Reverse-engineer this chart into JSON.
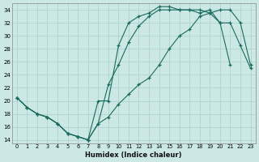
{
  "xlabel": "Humidex (Indice chaleur)",
  "bg_color": "#cce8e4",
  "grid_color": "#aacfcc",
  "line_color": "#1a6b5e",
  "xlim": [
    -0.5,
    23.5
  ],
  "ylim": [
    13.5,
    35
  ],
  "yticks": [
    14,
    16,
    18,
    20,
    22,
    24,
    26,
    28,
    30,
    32,
    34
  ],
  "xticks": [
    0,
    1,
    2,
    3,
    4,
    5,
    6,
    7,
    8,
    9,
    10,
    11,
    12,
    13,
    14,
    15,
    16,
    17,
    18,
    19,
    20,
    21,
    22,
    23
  ],
  "line1_x": [
    0,
    1,
    2,
    3,
    4,
    5,
    6,
    7,
    8,
    9,
    10,
    11,
    12,
    13,
    14,
    15,
    16,
    17,
    18,
    19,
    20,
    21,
    22,
    23
  ],
  "line1_y": [
    20.5,
    19.0,
    18.0,
    17.5,
    16.5,
    15.0,
    14.5,
    14.0,
    20.0,
    20.0,
    28.5,
    32.0,
    33.0,
    33.5,
    34.5,
    34.5,
    34.0,
    34.0,
    34.0,
    33.5,
    32.0,
    32.0,
    28.5,
    25.0
  ],
  "line2_x": [
    0,
    1,
    2,
    3,
    4,
    5,
    6,
    7,
    8,
    9,
    10,
    11,
    12,
    13,
    14,
    15,
    16,
    17,
    18,
    19,
    20,
    21
  ],
  "line2_y": [
    20.5,
    19.0,
    18.0,
    17.5,
    16.5,
    15.0,
    14.5,
    14.0,
    16.5,
    22.5,
    25.5,
    29.0,
    31.5,
    33.0,
    34.0,
    34.0,
    34.0,
    34.0,
    33.5,
    34.0,
    32.0,
    25.5
  ],
  "line3_x": [
    0,
    1,
    2,
    3,
    4,
    5,
    6,
    7,
    8,
    9,
    10,
    11,
    12,
    13,
    14,
    15,
    16,
    17,
    18,
    19,
    20,
    21,
    22,
    23
  ],
  "line3_y": [
    20.5,
    19.0,
    18.0,
    17.5,
    16.5,
    15.0,
    14.5,
    14.0,
    16.5,
    17.5,
    19.5,
    21.0,
    22.5,
    23.5,
    25.5,
    28.0,
    30.0,
    31.0,
    33.0,
    33.5,
    34.0,
    34.0,
    32.0,
    25.5
  ]
}
